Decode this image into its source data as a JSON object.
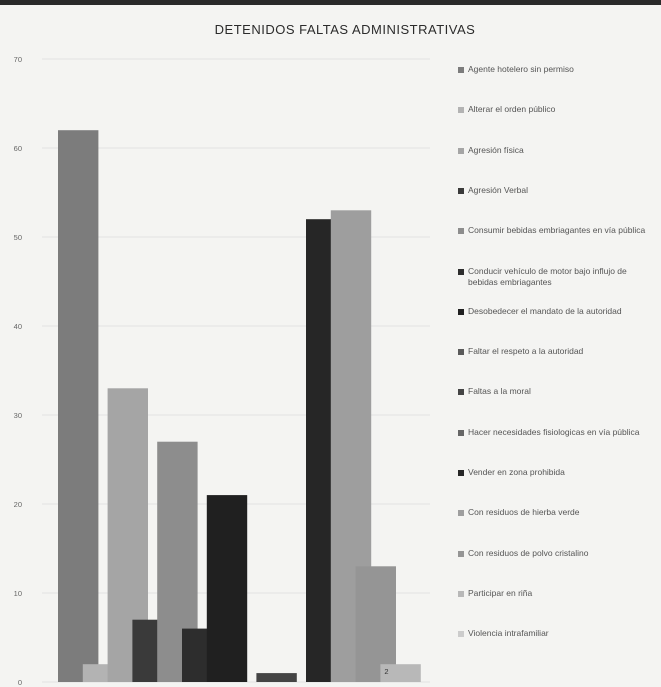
{
  "chart_data": {
    "type": "bar",
    "title": "DETENIDOS FALTAS ADMINISTRATIVAS",
    "ylim": [
      0,
      70
    ],
    "yticks": [
      "0",
      "10",
      "20",
      "30",
      "40",
      "50",
      "60",
      "70"
    ],
    "grid": true,
    "legend_position": "right",
    "series": [
      {
        "name": "Agente hotelero sin permiso",
        "value": 62,
        "color": "#7c7c7c"
      },
      {
        "name": "Alterar el orden público",
        "value": 2,
        "color": "#b3b3b3"
      },
      {
        "name": "Agresión física",
        "value": 33,
        "color": "#a5a5a5"
      },
      {
        "name": "Agresión Verbal",
        "value": 7,
        "color": "#3a3a3a"
      },
      {
        "name": "Consumir bebidas embriagantes en vía pública",
        "value": 27,
        "color": "#8d8d8d"
      },
      {
        "name": "Conducir vehículo de motor bajo influjo de bebidas embriagantes",
        "value": 6,
        "color": "#2d2d2d"
      },
      {
        "name": "Desobedecer el mandato de la autoridad",
        "value": 21,
        "color": "#202020"
      },
      {
        "name": "Faltar el respeto a la autoridad",
        "value": 0,
        "color": "#5a5a5a"
      },
      {
        "name": "Faltas a la moral",
        "value": 1,
        "color": "#444444"
      },
      {
        "name": "Hacer necesidades fisiologicas en vía pública",
        "value": 0,
        "color": "#666666"
      },
      {
        "name": "Vender en zona prohibida",
        "value": 52,
        "color": "#262626"
      },
      {
        "name": "Con residuos de hierba verde",
        "value": 53,
        "color": "#9e9e9e"
      },
      {
        "name": "Con residuos de polvo cristalino",
        "value": 13,
        "color": "#959595"
      },
      {
        "name": "Participar en riña",
        "value": 2,
        "color": "#b8b8b8"
      },
      {
        "name": "Violencia intrafamiliar",
        "value": 0,
        "color": "#cccccc"
      }
    ],
    "data_labels": [
      {
        "series_index": 13,
        "text": "2"
      }
    ]
  }
}
